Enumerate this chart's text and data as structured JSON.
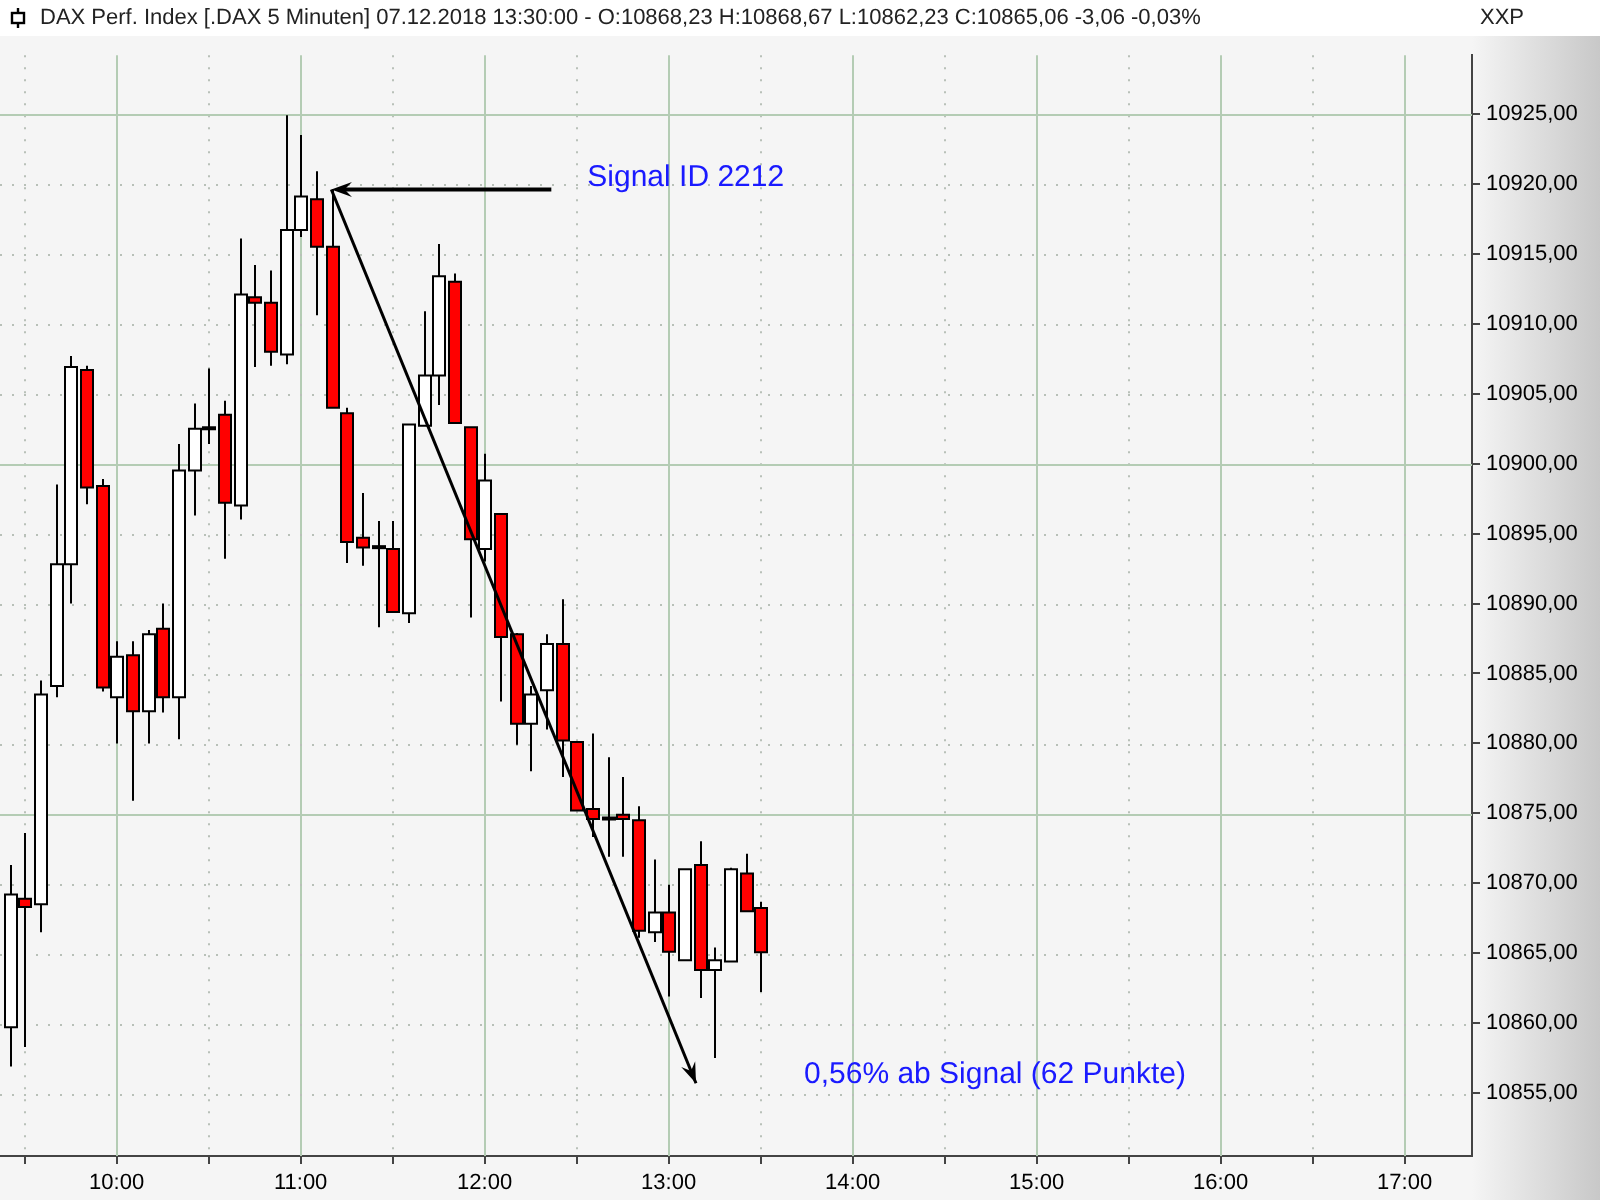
{
  "chart_data": {
    "type": "candlestick",
    "title": "DAX Perf. Index [.DAX  5 Minuten] 07.12.2018 13:30:00 - O:10868,23 H:10868,67 L:10862,23 C:10865,06 -3,06 -0,03%",
    "ylabel": "XXP",
    "x": [
      9.4167,
      9.5,
      9.5833,
      9.6667,
      9.75,
      9.8333,
      9.9167,
      10,
      10.0833,
      10.1667,
      10.25,
      10.3333,
      10.4167,
      10.5,
      10.5833,
      10.6667,
      10.75,
      10.8333,
      10.9167,
      11,
      11.0833,
      11.1667,
      11.25,
      11.3333,
      11.4167,
      11.5,
      11.5833,
      11.6667,
      11.75,
      11.8333,
      11.9167,
      12,
      12.0833,
      12.1667,
      12.25,
      12.3333,
      12.4167,
      12.5,
      12.5833,
      12.6667,
      12.75,
      12.8333,
      12.9167,
      13,
      13.0833,
      13.1667,
      13.25,
      13.3333,
      13.4167,
      13.5
    ],
    "ohlc": [
      [
        10859.7,
        10871.3,
        10856.9,
        10869.2
      ],
      [
        10868.9,
        10873.6,
        10858.3,
        10868.3
      ],
      [
        10868.5,
        10884.5,
        10866.5,
        10883.5
      ],
      [
        10884.1,
        10898.5,
        10883.3,
        10892.8
      ],
      [
        10892.8,
        10907.7,
        10890.0,
        10906.9
      ],
      [
        10906.7,
        10907.0,
        10897.1,
        10898.3
      ],
      [
        10898.4,
        10898.9,
        10883.7,
        10884.0
      ],
      [
        10883.3,
        10887.3,
        10880.0,
        10886.2
      ],
      [
        10886.3,
        10887.3,
        10875.9,
        10882.3
      ],
      [
        10882.3,
        10888.1,
        10880.0,
        10887.8
      ],
      [
        10888.2,
        10890.0,
        10882.2,
        10883.3
      ],
      [
        10883.3,
        10901.4,
        10880.3,
        10899.5
      ],
      [
        10899.5,
        10904.3,
        10896.3,
        10902.5
      ],
      [
        10902.6,
        10906.8,
        10901.4,
        10902.6
      ],
      [
        10903.5,
        10904.5,
        10893.2,
        10897.2
      ],
      [
        10897.0,
        10916.1,
        10896.0,
        10912.1
      ],
      [
        10911.9,
        10914.2,
        10906.9,
        10911.5
      ],
      [
        10911.5,
        10913.8,
        10907.0,
        10908.0
      ],
      [
        10907.8,
        10924.9,
        10907.1,
        10916.7
      ],
      [
        10916.7,
        10923.5,
        10916.2,
        10919.1
      ],
      [
        10918.9,
        10920.9,
        10910.6,
        10915.5
      ],
      [
        10915.5,
        10919.6,
        10904.0,
        10904.0
      ],
      [
        10903.6,
        10904.0,
        10892.9,
        10894.4
      ],
      [
        10894.7,
        10897.9,
        10892.7,
        10894.0
      ],
      [
        10894.1,
        10895.9,
        10888.3,
        10894.1
      ],
      [
        10893.9,
        10895.9,
        10889.4,
        10889.4
      ],
      [
        10889.3,
        10902.8,
        10888.6,
        10902.8
      ],
      [
        10902.7,
        10910.9,
        10902.7,
        10906.3
      ],
      [
        10906.3,
        10915.7,
        10904.2,
        10913.4
      ],
      [
        10913.0,
        10913.6,
        10902.9,
        10902.9
      ],
      [
        10902.6,
        10902.6,
        10889.0,
        10894.6
      ],
      [
        10893.9,
        10900.7,
        10893.0,
        10898.8
      ],
      [
        10896.4,
        10896.4,
        10883.0,
        10887.6
      ],
      [
        10887.8,
        10887.9,
        10879.9,
        10881.4
      ],
      [
        10881.4,
        10884.1,
        10878.0,
        10883.5
      ],
      [
        10883.8,
        10887.8,
        10881.0,
        10887.1
      ],
      [
        10887.1,
        10890.3,
        10877.6,
        10880.2
      ],
      [
        10880.1,
        10880.1,
        10875.2,
        10875.2
      ],
      [
        10875.3,
        10880.7,
        10873.3,
        10874.6
      ],
      [
        10874.7,
        10879.0,
        10871.9,
        10874.7
      ],
      [
        10874.9,
        10877.6,
        10871.9,
        10874.6
      ],
      [
        10874.5,
        10875.5,
        10866.1,
        10866.6
      ],
      [
        10866.5,
        10871.7,
        10865.8,
        10867.9
      ],
      [
        10867.9,
        10869.9,
        10861.9,
        10865.1
      ],
      [
        10864.5,
        10871.0,
        10864.5,
        10871.0
      ],
      [
        10871.3,
        10873.0,
        10861.8,
        10863.8
      ],
      [
        10863.8,
        10865.4,
        10857.5,
        10864.5
      ],
      [
        10864.4,
        10871.1,
        10864.4,
        10871.0
      ],
      [
        10870.7,
        10872.1,
        10868.0,
        10868.0
      ],
      [
        10868.23,
        10868.67,
        10862.23,
        10865.06
      ]
    ],
    "xlim": [
      9.366,
      17.366
    ],
    "xticks": [
      {
        "value": 9.5,
        "label": null
      },
      {
        "value": 10,
        "label": "10:00"
      },
      {
        "value": 10.5,
        "label": null
      },
      {
        "value": 11,
        "label": "11:00"
      },
      {
        "value": 11.5,
        "label": null
      },
      {
        "value": 12,
        "label": "12:00"
      },
      {
        "value": 12.5,
        "label": null
      },
      {
        "value": 13,
        "label": "13:00"
      },
      {
        "value": 13.5,
        "label": null
      },
      {
        "value": 14,
        "label": "14:00"
      },
      {
        "value": 14.5,
        "label": null
      },
      {
        "value": 15,
        "label": "15:00"
      },
      {
        "value": 15.5,
        "label": null
      },
      {
        "value": 16,
        "label": "16:00"
      },
      {
        "value": 16.5,
        "label": null
      },
      {
        "value": 17,
        "label": "17:00"
      }
    ],
    "ylim": [
      10850.5,
      10929.2
    ],
    "yticks": [
      {
        "value": 10855,
        "label": "10855,00"
      },
      {
        "value": 10860,
        "label": "10860,00"
      },
      {
        "value": 10865,
        "label": "10865,00"
      },
      {
        "value": 10870,
        "label": "10870,00"
      },
      {
        "value": 10875,
        "label": "10875,00"
      },
      {
        "value": 10880,
        "label": "10880,00"
      },
      {
        "value": 10885,
        "label": "10885,00"
      },
      {
        "value": 10890,
        "label": "10890,00"
      },
      {
        "value": 10895,
        "label": "10895,00"
      },
      {
        "value": 10900,
        "label": "10900,00"
      },
      {
        "value": 10905,
        "label": "10905,00"
      },
      {
        "value": 10910,
        "label": "10910,00"
      },
      {
        "value": 10915,
        "label": "10915,00"
      },
      {
        "value": 10920,
        "label": "10920,00"
      },
      {
        "value": 10925,
        "label": "10925,00"
      }
    ],
    "grid": true,
    "annotations": [
      {
        "text": "Signal ID 2212",
        "x": 11.1667,
        "y": 10919.6
      },
      "0,56% ab Signal (62 Punkte)"
    ]
  }
}
